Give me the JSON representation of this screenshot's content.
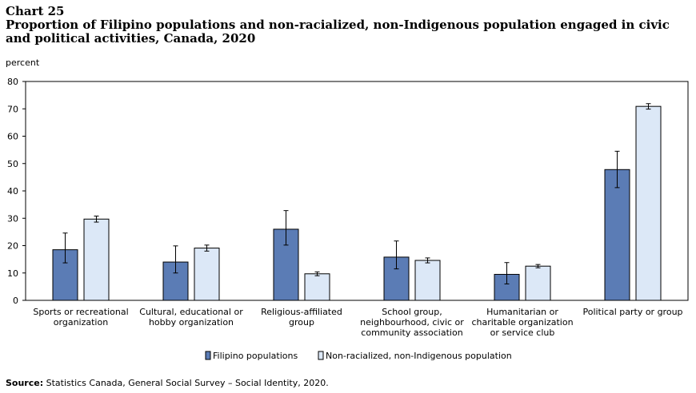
{
  "header": {
    "chart_number": "Chart 25",
    "title": "Proportion of Filipino populations and non-racialized, non-Indigenous population engaged in civic and political activities, Canada, 2020"
  },
  "source": {
    "label": "Source:",
    "text": "Statistics Canada, General Social Survey – Social Identity, 2020."
  },
  "chart_data": {
    "type": "bar",
    "ylabel": "percent",
    "ylim": [
      0,
      80
    ],
    "yticks": [
      0,
      10,
      20,
      30,
      40,
      50,
      60,
      70,
      80
    ],
    "categories": [
      [
        "Sports or recreational",
        "organization"
      ],
      [
        "Cultural, educational or",
        "hobby organization"
      ],
      [
        "Religious-affiliated",
        "group"
      ],
      [
        "School group,",
        "neighbourhood, civic or",
        "community association"
      ],
      [
        "Humanitarian or",
        "charitable organization",
        "or service club"
      ],
      [
        "Political party or group"
      ]
    ],
    "series": [
      {
        "name": "Filipino populations",
        "color": "#5b7cb5",
        "values": [
          18.5,
          14.0,
          26.0,
          15.8,
          9.5,
          47.8
        ],
        "error_low": [
          13.7,
          10.0,
          20.2,
          11.5,
          6.0,
          41.2
        ],
        "error_high": [
          24.6,
          19.9,
          32.8,
          21.7,
          13.8,
          54.5
        ]
      },
      {
        "name": "Non-racialized, non-Indigenous population",
        "color": "#dce8f7",
        "values": [
          29.7,
          19.1,
          9.7,
          14.6,
          12.5,
          70.9
        ],
        "error_low": [
          28.6,
          18.0,
          9.0,
          13.7,
          11.9,
          69.9
        ],
        "error_high": [
          30.8,
          20.2,
          10.4,
          15.5,
          13.1,
          71.9
        ]
      }
    ],
    "grid": false,
    "legend": "bottom-center"
  }
}
